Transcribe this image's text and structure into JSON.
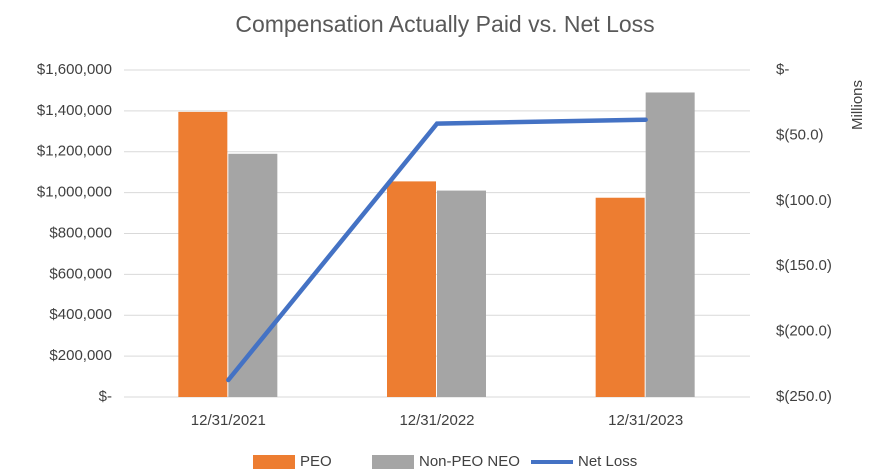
{
  "chart_data": {
    "type": "bar",
    "title": "Compensation Actually Paid vs. Net Loss",
    "categories": [
      "12/31/2021",
      "12/31/2022",
      "12/31/2023"
    ],
    "series": [
      {
        "name": "PEO",
        "color": "#ed7d31",
        "values": [
          1395000,
          1055000,
          975000
        ]
      },
      {
        "name": "Non-PEO NEO",
        "color": "#a5a5a5",
        "values": [
          1190000,
          1010000,
          1490000
        ]
      },
      {
        "name": "Net Loss",
        "color": "#4472c4",
        "type": "line",
        "axis": "y2",
        "values": [
          -237,
          -41,
          -38
        ]
      }
    ],
    "ylim": [
      0,
      1600000
    ],
    "yticks": [
      {
        "value": 0,
        "label": "$-"
      },
      {
        "value": 200000,
        "label": "$200,000"
      },
      {
        "value": 400000,
        "label": "$400,000"
      },
      {
        "value": 600000,
        "label": "$600,000"
      },
      {
        "value": 800000,
        "label": "$800,000"
      },
      {
        "value": 1000000,
        "label": "$1,000,000"
      },
      {
        "value": 1200000,
        "label": "$1,200,000"
      },
      {
        "value": 1400000,
        "label": "$1,400,000"
      },
      {
        "value": 1600000,
        "label": "$1,600,000"
      }
    ],
    "y2lim": [
      -250,
      0
    ],
    "y2ticks": [
      {
        "value": 0,
        "label": "$-"
      },
      {
        "value": -50,
        "label": "$(50.0)"
      },
      {
        "value": -100,
        "label": "$(100.0)"
      },
      {
        "value": -150,
        "label": "$(150.0)"
      },
      {
        "value": -200,
        "label": "$(200.0)"
      },
      {
        "value": -250,
        "label": "$(250.0)"
      }
    ],
    "y2label": "Millions",
    "grid": true,
    "legend": "bottom"
  }
}
